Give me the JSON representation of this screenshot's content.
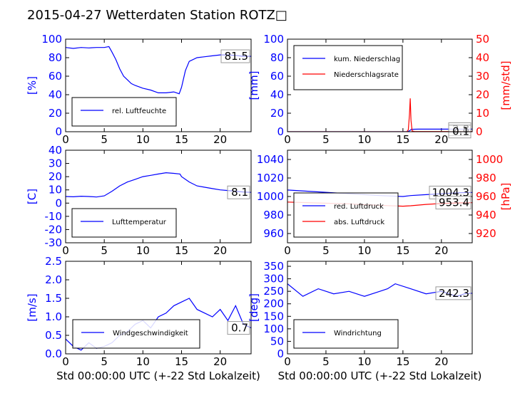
{
  "title": "2015-04-27 Wetterdaten Station ROTZ□",
  "colors": {
    "blue": "#0000ff",
    "red": "#ff0000",
    "black": "#000000"
  },
  "chart_data": [
    {
      "id": "humidity",
      "type": "line",
      "xlim": [
        0,
        24
      ],
      "x_ticks": [
        0,
        5,
        10,
        15,
        20
      ],
      "ylim": [
        0,
        100
      ],
      "y_ticks": [
        0,
        20,
        40,
        60,
        80,
        100
      ],
      "ylabel": "[%]",
      "last_value": "81.5",
      "legend_position": "lower-left",
      "series": [
        {
          "name": "rel. Luftfeuchte",
          "color": "#0000ff",
          "points": [
            [
              0,
              91
            ],
            [
              1,
              90
            ],
            [
              2,
              91
            ],
            [
              3,
              90.5
            ],
            [
              4,
              91
            ],
            [
              5,
              91
            ],
            [
              5.6,
              92
            ],
            [
              6,
              86
            ],
            [
              6.5,
              78
            ],
            [
              7,
              68
            ],
            [
              7.5,
              60
            ],
            [
              8,
              56
            ],
            [
              8.5,
              52
            ],
            [
              9,
              50
            ],
            [
              10,
              47
            ],
            [
              11,
              45
            ],
            [
              12,
              42
            ],
            [
              13,
              42
            ],
            [
              14,
              43
            ],
            [
              14.7,
              41
            ],
            [
              15,
              48
            ],
            [
              15.5,
              66
            ],
            [
              16,
              76
            ],
            [
              17,
              80
            ],
            [
              18,
              81
            ],
            [
              19,
              82
            ],
            [
              20,
              83
            ],
            [
              21,
              83
            ],
            [
              22,
              82.5
            ],
            [
              23,
              81.5
            ],
            [
              24,
              81.5
            ]
          ]
        }
      ]
    },
    {
      "id": "precipitation",
      "type": "line",
      "xlim": [
        0,
        24
      ],
      "x_ticks": [
        0,
        5,
        10,
        15,
        20
      ],
      "ylim": [
        0,
        100
      ],
      "y_ticks": [
        0,
        20,
        40,
        60,
        80,
        100
      ],
      "ylabel": "[mm]",
      "ylim_right": [
        0,
        50
      ],
      "y_ticks_right": [
        0,
        10,
        20,
        30,
        40,
        50
      ],
      "ylabel_right": "[mm/std]",
      "last_values": [
        "2.8",
        "0.1"
      ],
      "legend_position": "upper-left",
      "series": [
        {
          "name": "kum. Niederschlag",
          "color": "#0000ff",
          "axis": "left",
          "points": [
            [
              0,
              0
            ],
            [
              15.6,
              0
            ],
            [
              15.9,
              1.2
            ],
            [
              16.1,
              2.6
            ],
            [
              17,
              2.8
            ],
            [
              24,
              2.8
            ]
          ]
        },
        {
          "name": "Niederschlagsrate",
          "color": "#ff0000",
          "axis": "right",
          "points": [
            [
              0,
              0
            ],
            [
              15.5,
              0
            ],
            [
              15.7,
              1
            ],
            [
              15.85,
              9
            ],
            [
              15.95,
              18
            ],
            [
              16.05,
              6
            ],
            [
              16.2,
              0.4
            ],
            [
              16.5,
              0.1
            ],
            [
              24,
              0.1
            ]
          ]
        }
      ]
    },
    {
      "id": "temperature",
      "type": "line",
      "xlim": [
        0,
        24
      ],
      "x_ticks": [
        0,
        5,
        10,
        15,
        20
      ],
      "ylim": [
        -30,
        40
      ],
      "y_ticks": [
        -30,
        -20,
        -10,
        0,
        10,
        20,
        30,
        40
      ],
      "ylabel": "[C]",
      "last_value": "8.1",
      "legend_position": "lower-left",
      "series": [
        {
          "name": "Lufttemperatur",
          "color": "#0000ff",
          "points": [
            [
              0,
              5
            ],
            [
              1,
              4.8
            ],
            [
              2,
              5.2
            ],
            [
              3,
              5
            ],
            [
              4,
              4.6
            ],
            [
              5,
              5.5
            ],
            [
              6,
              9
            ],
            [
              7,
              13
            ],
            [
              8,
              16
            ],
            [
              9,
              18
            ],
            [
              10,
              20
            ],
            [
              11,
              21
            ],
            [
              12,
              22
            ],
            [
              13,
              23
            ],
            [
              14,
              22.5
            ],
            [
              14.8,
              22
            ],
            [
              15,
              20
            ],
            [
              16,
              16
            ],
            [
              17,
              13
            ],
            [
              18,
              12
            ],
            [
              19,
              11
            ],
            [
              20,
              10
            ],
            [
              21,
              9.5
            ],
            [
              22,
              9
            ],
            [
              23,
              8.4
            ],
            [
              24,
              8.1
            ]
          ]
        }
      ]
    },
    {
      "id": "pressure",
      "type": "line",
      "xlim": [
        0,
        24
      ],
      "x_ticks": [
        0,
        5,
        10,
        15,
        20
      ],
      "ylim": [
        950,
        1050
      ],
      "y_ticks": [
        960,
        980,
        1000,
        1020,
        1040
      ],
      "ylim_right": [
        910,
        1010
      ],
      "y_ticks_right": [
        920,
        940,
        960,
        980,
        1000
      ],
      "ylabel_right": "[hPa]",
      "last_values": [
        "1004.3",
        "953.4"
      ],
      "legend_position": "lower-left",
      "series": [
        {
          "name": "red. Luftdruck",
          "color": "#0000ff",
          "axis": "left",
          "points": [
            [
              0,
              1007
            ],
            [
              4,
              1005
            ],
            [
              8,
              1003
            ],
            [
              12,
              1001
            ],
            [
              15,
              1000
            ],
            [
              16,
              1001
            ],
            [
              18,
              1002
            ],
            [
              20,
              1003
            ],
            [
              22,
              1004
            ],
            [
              24,
              1004.3
            ]
          ]
        },
        {
          "name": "abs. Luftdruck",
          "color": "#ff0000",
          "axis": "right",
          "points": [
            [
              0,
              954
            ],
            [
              4,
              953
            ],
            [
              8,
              952
            ],
            [
              12,
              950.5
            ],
            [
              15,
              949.5
            ],
            [
              16,
              950
            ],
            [
              18,
              951.5
            ],
            [
              20,
              952.5
            ],
            [
              22,
              953
            ],
            [
              24,
              953.4
            ]
          ]
        }
      ]
    },
    {
      "id": "wind-speed",
      "type": "line",
      "xlim": [
        0,
        24
      ],
      "x_ticks": [
        0,
        5,
        10,
        15,
        20
      ],
      "ylim": [
        0,
        2.5
      ],
      "y_ticks": [
        0.0,
        0.5,
        1.0,
        1.5,
        2.0,
        2.5
      ],
      "ylabel": "[m/s]",
      "xlabel": "Std 00:00:00 UTC (+-22 Std Lokalzeit)",
      "last_value": "0.7",
      "legend_position": "lower-center",
      "series": [
        {
          "name": "Windgeschwindigkeit",
          "color": "#0000ff",
          "points": [
            [
              0,
              0.4
            ],
            [
              1,
              0.2
            ],
            [
              2,
              0.1
            ],
            [
              3,
              0.3
            ],
            [
              4,
              0.15
            ],
            [
              5,
              0.2
            ],
            [
              6,
              0.3
            ],
            [
              7,
              0.5
            ],
            [
              8,
              0.6
            ],
            [
              9,
              0.8
            ],
            [
              10,
              0.9
            ],
            [
              11,
              0.7
            ],
            [
              12,
              1.0
            ],
            [
              13,
              1.1
            ],
            [
              14,
              1.3
            ],
            [
              15,
              1.4
            ],
            [
              16,
              1.5
            ],
            [
              17,
              1.2
            ],
            [
              18,
              1.1
            ],
            [
              19,
              1.0
            ],
            [
              20,
              1.2
            ],
            [
              21,
              0.9
            ],
            [
              22,
              1.3
            ],
            [
              23,
              0.8
            ],
            [
              24,
              0.7
            ]
          ]
        }
      ]
    },
    {
      "id": "wind-direction",
      "type": "line",
      "xlim": [
        0,
        24
      ],
      "x_ticks": [
        0,
        5,
        10,
        15,
        20
      ],
      "ylim": [
        0,
        370
      ],
      "y_ticks": [
        0,
        50,
        100,
        150,
        200,
        250,
        300,
        350
      ],
      "ylabel": "[deg]",
      "xlabel": "Std 00:00:00 UTC (+-22 Std Lokalzeit)",
      "last_value": "242.3",
      "legend_position": "lower-left",
      "series": [
        {
          "name": "Windrichtung",
          "color": "#0000ff",
          "points": [
            [
              0,
              280
            ],
            [
              2,
              230
            ],
            [
              4,
              260
            ],
            [
              6,
              240
            ],
            [
              8,
              250
            ],
            [
              10,
              230
            ],
            [
              12,
              250
            ],
            [
              13,
              260
            ],
            [
              14,
              280
            ],
            [
              16,
              260
            ],
            [
              18,
              240
            ],
            [
              20,
              250
            ],
            [
              22,
              230
            ],
            [
              23,
              240
            ],
            [
              24,
              242.3
            ]
          ]
        }
      ]
    }
  ]
}
